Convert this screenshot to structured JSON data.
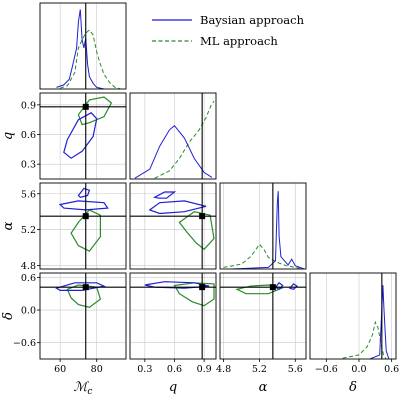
{
  "chart_data": {
    "type": "corner",
    "parameters": [
      {
        "symbol": "ℳ",
        "subscript": "c",
        "ticks": [
          {
            "v": 60,
            "t": "60"
          },
          {
            "v": 80,
            "t": "80"
          }
        ],
        "range": [
          49,
          96
        ],
        "truth": 74
      },
      {
        "symbol": "q",
        "ticks": [
          {
            "v": 0.3,
            "t": "0.3"
          },
          {
            "v": 0.6,
            "t": "0.6"
          },
          {
            "v": 0.9,
            "t": "0.9"
          }
        ],
        "range": [
          0.15,
          1.02
        ],
        "truth": 0.88
      },
      {
        "symbol": "α",
        "ticks": [
          {
            "v": 4.8,
            "t": "4.8"
          },
          {
            "v": 5.2,
            "t": "5.2"
          },
          {
            "v": 5.6,
            "t": "5.6"
          }
        ],
        "range": [
          4.76,
          5.72
        ],
        "truth": 5.35
      },
      {
        "symbol": "δ",
        "ticks": [
          {
            "v": -0.6,
            "t": "−0.6"
          },
          {
            "v": 0.0,
            "t": "0.0"
          },
          {
            "v": 0.6,
            "t": "0.6"
          }
        ],
        "range": [
          -0.9,
          0.68
        ],
        "truth": 0.42
      }
    ],
    "series": [
      {
        "name": "Baysian approach",
        "color": "#1f1fd6",
        "dash": "solid"
      },
      {
        "name": "ML approach",
        "color": "#2a8a2a",
        "dash": "dashed"
      }
    ],
    "legend": "top-right",
    "grid": true,
    "marginals": [
      {
        "param": 0,
        "bayes": [
          [
            58,
            0.02
          ],
          [
            62,
            0.05
          ],
          [
            65,
            0.12
          ],
          [
            67,
            0.3
          ],
          [
            69,
            0.5
          ],
          [
            70,
            0.82
          ],
          [
            71,
            0.97
          ],
          [
            72,
            0.6
          ],
          [
            73,
            0.5
          ],
          [
            74,
            0.62
          ],
          [
            75,
            0.3
          ],
          [
            76,
            0.15
          ],
          [
            78,
            0.07
          ],
          [
            80,
            0.02
          ],
          [
            84,
            0.0
          ]
        ],
        "ml": [
          [
            60,
            0.01
          ],
          [
            64,
            0.04
          ],
          [
            68,
            0.2
          ],
          [
            70,
            0.5
          ],
          [
            72,
            0.6
          ],
          [
            74,
            0.68
          ],
          [
            76,
            0.72
          ],
          [
            78,
            0.66
          ],
          [
            80,
            0.45
          ],
          [
            82,
            0.3
          ],
          [
            84,
            0.18
          ],
          [
            87,
            0.08
          ],
          [
            90,
            0.02
          ],
          [
            93,
            0.0
          ]
        ]
      },
      {
        "param": 1,
        "bayes": [
          [
            0.2,
            0.01
          ],
          [
            0.35,
            0.12
          ],
          [
            0.45,
            0.4
          ],
          [
            0.55,
            0.6
          ],
          [
            0.6,
            0.65
          ],
          [
            0.7,
            0.5
          ],
          [
            0.8,
            0.25
          ],
          [
            0.9,
            0.08
          ],
          [
            0.98,
            0.02
          ]
        ],
        "ml": [
          [
            0.4,
            0.01
          ],
          [
            0.55,
            0.1
          ],
          [
            0.65,
            0.25
          ],
          [
            0.75,
            0.45
          ],
          [
            0.85,
            0.6
          ],
          [
            0.92,
            0.75
          ],
          [
            0.97,
            0.9
          ],
          [
            1.0,
            0.95
          ]
        ]
      },
      {
        "param": 2,
        "bayes": [
          [
            4.9,
            0.0
          ],
          [
            5.3,
            0.02
          ],
          [
            5.38,
            0.1
          ],
          [
            5.4,
            0.8
          ],
          [
            5.41,
            0.95
          ],
          [
            5.42,
            0.4
          ],
          [
            5.44,
            0.15
          ],
          [
            5.52,
            0.05
          ],
          [
            5.56,
            0.12
          ],
          [
            5.6,
            0.04
          ],
          [
            5.7,
            0.0
          ]
        ],
        "ml": [
          [
            4.8,
            0.02
          ],
          [
            5.0,
            0.06
          ],
          [
            5.1,
            0.15
          ],
          [
            5.15,
            0.22
          ],
          [
            5.2,
            0.3
          ],
          [
            5.25,
            0.24
          ],
          [
            5.3,
            0.14
          ],
          [
            5.4,
            0.08
          ],
          [
            5.5,
            0.04
          ],
          [
            5.65,
            0.01
          ]
        ]
      },
      {
        "param": 3,
        "bayes": [
          [
            0.2,
            0.0
          ],
          [
            0.38,
            0.05
          ],
          [
            0.42,
            0.6
          ],
          [
            0.44,
            0.9
          ],
          [
            0.46,
            0.6
          ],
          [
            0.5,
            0.1
          ],
          [
            0.55,
            0.0
          ]
        ],
        "ml": [
          [
            -0.3,
            0.01
          ],
          [
            0.0,
            0.05
          ],
          [
            0.15,
            0.15
          ],
          [
            0.25,
            0.3
          ],
          [
            0.3,
            0.45
          ],
          [
            0.35,
            0.38
          ],
          [
            0.4,
            0.2
          ],
          [
            0.45,
            0.05
          ],
          [
            0.5,
            0.0
          ]
        ]
      }
    ],
    "contours": [
      {
        "row": 1,
        "col": 0,
        "bayes": [
          [
            [
              64,
              0.55
            ],
            [
              70,
              0.75
            ],
            [
              77,
              0.82
            ],
            [
              80,
              0.76
            ],
            [
              78,
              0.58
            ],
            [
              72,
              0.43
            ],
            [
              66,
              0.36
            ],
            [
              62,
              0.42
            ]
          ]
        ],
        "ml": [
          [
            [
              70,
              0.8
            ],
            [
              76,
              0.95
            ],
            [
              84,
              0.98
            ],
            [
              88,
              0.92
            ],
            [
              84,
              0.78
            ],
            [
              76,
              0.72
            ],
            [
              72,
              0.7
            ]
          ]
        ]
      },
      {
        "row": 2,
        "col": 0,
        "bayes": [
          [
            [
              70,
              5.58
            ],
            [
              73,
              5.66
            ],
            [
              76,
              5.64
            ],
            [
              75,
              5.58
            ],
            [
              71,
              5.56
            ]
          ],
          [
            [
              60,
              5.48
            ],
            [
              70,
              5.52
            ],
            [
              84,
              5.5
            ],
            [
              86,
              5.44
            ],
            [
              74,
              5.42
            ],
            [
              62,
              5.44
            ]
          ]
        ],
        "ml": [
          [
            [
              70,
              5.28
            ],
            [
              76,
              5.42
            ],
            [
              82,
              5.36
            ],
            [
              82,
              5.12
            ],
            [
              76,
              4.96
            ],
            [
              70,
              5.02
            ],
            [
              66,
              5.16
            ]
          ]
        ]
      },
      {
        "row": 2,
        "col": 1,
        "bayes": [
          [
            [
              0.4,
              5.56
            ],
            [
              0.5,
              5.62
            ],
            [
              0.6,
              5.62
            ],
            [
              0.52,
              5.55
            ],
            [
              0.44,
              5.55
            ]
          ],
          [
            [
              0.35,
              5.42
            ],
            [
              0.45,
              5.5
            ],
            [
              0.7,
              5.52
            ],
            [
              0.92,
              5.46
            ],
            [
              0.7,
              5.4
            ],
            [
              0.45,
              5.38
            ]
          ]
        ],
        "ml": [
          [
            [
              0.65,
              5.28
            ],
            [
              0.8,
              5.4
            ],
            [
              0.96,
              5.36
            ],
            [
              1.0,
              5.1
            ],
            [
              0.9,
              4.98
            ],
            [
              0.82,
              5.05
            ],
            [
              0.72,
              5.18
            ]
          ]
        ]
      },
      {
        "row": 3,
        "col": 0,
        "bayes": [
          [
            [
              58,
              0.4
            ],
            [
              68,
              0.5
            ],
            [
              80,
              0.5
            ],
            [
              84,
              0.44
            ],
            [
              72,
              0.36
            ],
            [
              60,
              0.36
            ]
          ]
        ],
        "ml": [
          [
            [
              64,
              0.38
            ],
            [
              70,
              0.46
            ],
            [
              80,
              0.42
            ],
            [
              82,
              0.2
            ],
            [
              76,
              0.05
            ],
            [
              70,
              0.1
            ],
            [
              66,
              0.22
            ]
          ]
        ]
      },
      {
        "row": 3,
        "col": 1,
        "bayes": [
          [
            [
              0.3,
              0.46
            ],
            [
              0.5,
              0.52
            ],
            [
              0.8,
              0.5
            ],
            [
              0.95,
              0.44
            ],
            [
              0.7,
              0.4
            ],
            [
              0.4,
              0.42
            ]
          ]
        ],
        "ml": [
          [
            [
              0.6,
              0.45
            ],
            [
              0.8,
              0.5
            ],
            [
              1.0,
              0.48
            ],
            [
              1.0,
              0.2
            ],
            [
              0.9,
              0.08
            ],
            [
              0.78,
              0.15
            ],
            [
              0.65,
              0.3
            ]
          ]
        ]
      },
      {
        "row": 3,
        "col": 2,
        "bayes": [
          [
            [
              5.38,
              0.42
            ],
            [
              5.42,
              0.5
            ],
            [
              5.46,
              0.45
            ],
            [
              5.42,
              0.38
            ]
          ],
          [
            [
              5.54,
              0.4
            ],
            [
              5.58,
              0.48
            ],
            [
              5.62,
              0.44
            ],
            [
              5.58,
              0.38
            ]
          ]
        ],
        "ml": [
          [
            [
              4.95,
              0.38
            ],
            [
              5.1,
              0.44
            ],
            [
              5.3,
              0.46
            ],
            [
              5.45,
              0.4
            ],
            [
              5.3,
              0.3
            ],
            [
              5.05,
              0.3
            ]
          ]
        ]
      }
    ]
  }
}
